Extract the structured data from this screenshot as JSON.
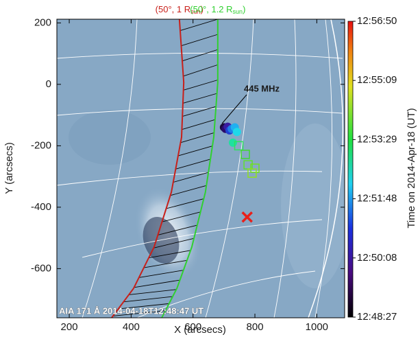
{
  "chart_data": {
    "type": "scatter",
    "x_label": "X (arcsecs)",
    "y_label": "Y (arcsecs)",
    "xlim": [
      160,
      1090
    ],
    "ylim": [
      -760,
      212
    ],
    "xticks": [
      200,
      400,
      600,
      800,
      1000
    ],
    "yticks": [
      200,
      0,
      -200,
      -400,
      -600
    ],
    "x": [
      700,
      705,
      712,
      718,
      725,
      735,
      742,
      729,
      748,
      769,
      778,
      800,
      791
    ],
    "y": [
      -140,
      -145,
      -138,
      -150,
      -145,
      -140,
      -155,
      -190,
      -200,
      -228,
      -262,
      -273,
      -289
    ],
    "colors": [
      "#1a0a3a",
      "#2a0a6a",
      "#3a1aa0",
      "#2040d0",
      "#2080e8",
      "#20b0f0",
      "#20d8e8",
      "#20e0a0",
      "#30e060",
      "#40d830",
      "#60e030",
      "#70e020",
      "#90e020"
    ],
    "markers": [
      "circle",
      "circle",
      "circle",
      "circle",
      "circle",
      "circle",
      "circle",
      "circle",
      "square",
      "square",
      "square",
      "square",
      "square"
    ],
    "source": {
      "x": 775,
      "y": -432,
      "color": "#e8201a"
    },
    "curves": [
      {
        "label": "(50°, 1 R",
        "sub": "sun",
        "tail": ")",
        "color": "#c8201a",
        "x": [
          556,
          570,
          563,
          530,
          474,
          408,
          337
        ],
        "y": [
          212,
          6,
          -172,
          -351,
          -530,
          -664,
          -760
        ]
      },
      {
        "label": "(50°, 1.2 R",
        "sub": "sun",
        "tail": ")",
        "color": "#30d030",
        "x": [
          680,
          680,
          667,
          640,
          596,
          548,
          499
        ],
        "y": [
          212,
          6,
          -172,
          -351,
          -530,
          -664,
          -760
        ]
      }
    ],
    "annotation": "445 MHz",
    "image_label": "AIA 171 Å 2014-04-18T12:48:47 UT",
    "colorbar": {
      "label": "Time on 2014-Apr-18 (UT)",
      "ticks": [
        "12:48:27",
        "12:50:08",
        "12:51:48",
        "12:53:29",
        "12:55:09",
        "12:56:50"
      ]
    }
  }
}
